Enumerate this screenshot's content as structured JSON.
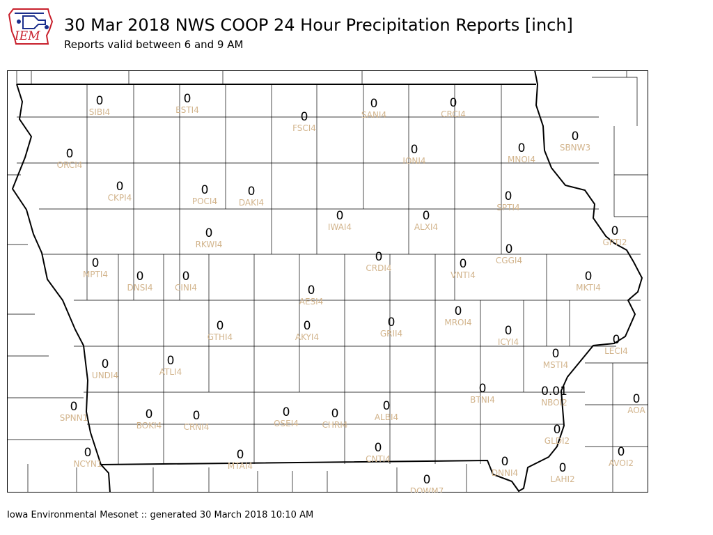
{
  "header": {
    "title": "30 Mar 2018 NWS COOP 24 Hour Precipitation Reports [inch]",
    "subtitle": "Reports valid between 6 and 9 AM"
  },
  "logo": {
    "text": "IEM"
  },
  "footer": {
    "text": "Iowa Environmental Mesonet :: generated 30 March 2018 10:10 AM"
  },
  "colors": {
    "value": "#000000",
    "station": "#d2b48c",
    "border": "#000000"
  },
  "stations": [
    {
      "id": "SIBI4",
      "value": "0"
    },
    {
      "id": "ESTI4",
      "value": "0"
    },
    {
      "id": "SANI4",
      "value": "0"
    },
    {
      "id": "CRCI4",
      "value": "0"
    },
    {
      "id": "FSCI4",
      "value": "0"
    },
    {
      "id": "SBNW3",
      "value": "0"
    },
    {
      "id": "MNOI4",
      "value": "0"
    },
    {
      "id": "ORCI4",
      "value": "0"
    },
    {
      "id": "IONI4",
      "value": "0"
    },
    {
      "id": "CKPI4",
      "value": "0"
    },
    {
      "id": "POCI4",
      "value": "0"
    },
    {
      "id": "DAKI4",
      "value": "0"
    },
    {
      "id": "SPTI4",
      "value": "0"
    },
    {
      "id": "IWAI4",
      "value": "0"
    },
    {
      "id": "ALXI4",
      "value": "0"
    },
    {
      "id": "RKWI4",
      "value": "0"
    },
    {
      "id": "GPTI2",
      "value": "0"
    },
    {
      "id": "CGGI4",
      "value": "0"
    },
    {
      "id": "CRDI4",
      "value": "0"
    },
    {
      "id": "MPTI4",
      "value": "0"
    },
    {
      "id": "VNTI4",
      "value": "0"
    },
    {
      "id": "DNSI4",
      "value": "0"
    },
    {
      "id": "CINI4",
      "value": "0"
    },
    {
      "id": "MKTI4",
      "value": "0"
    },
    {
      "id": "AESI4",
      "value": "0"
    },
    {
      "id": "MROI4",
      "value": "0"
    },
    {
      "id": "GRII4",
      "value": "0"
    },
    {
      "id": "GTHI4",
      "value": "0"
    },
    {
      "id": "AKYI4",
      "value": "0"
    },
    {
      "id": "ICYI4",
      "value": "0"
    },
    {
      "id": "LECI4",
      "value": "0"
    },
    {
      "id": "ATLI4",
      "value": "0"
    },
    {
      "id": "MSTI4",
      "value": "0"
    },
    {
      "id": "UNDI4",
      "value": "0"
    },
    {
      "id": "BTNI4",
      "value": "0"
    },
    {
      "id": "NBOI2",
      "value": "0.01"
    },
    {
      "id": "SPNN1",
      "value": "0"
    },
    {
      "id": "BOKI4",
      "value": "0"
    },
    {
      "id": "CRNI4",
      "value": "0"
    },
    {
      "id": "OSEI4",
      "value": "0"
    },
    {
      "id": "CHRI4",
      "value": "0"
    },
    {
      "id": "ALBI4",
      "value": "0"
    },
    {
      "id": "AOA",
      "value": "0"
    },
    {
      "id": "GLDI2",
      "value": "0"
    },
    {
      "id": "NCYN1",
      "value": "0"
    },
    {
      "id": "CNTI4",
      "value": "0"
    },
    {
      "id": "AVOI2",
      "value": "0"
    },
    {
      "id": "MTAI4",
      "value": "0"
    },
    {
      "id": "DNNI4",
      "value": "0"
    },
    {
      "id": "LAHI2",
      "value": "0"
    },
    {
      "id": "DOWM7",
      "value": "0"
    }
  ]
}
